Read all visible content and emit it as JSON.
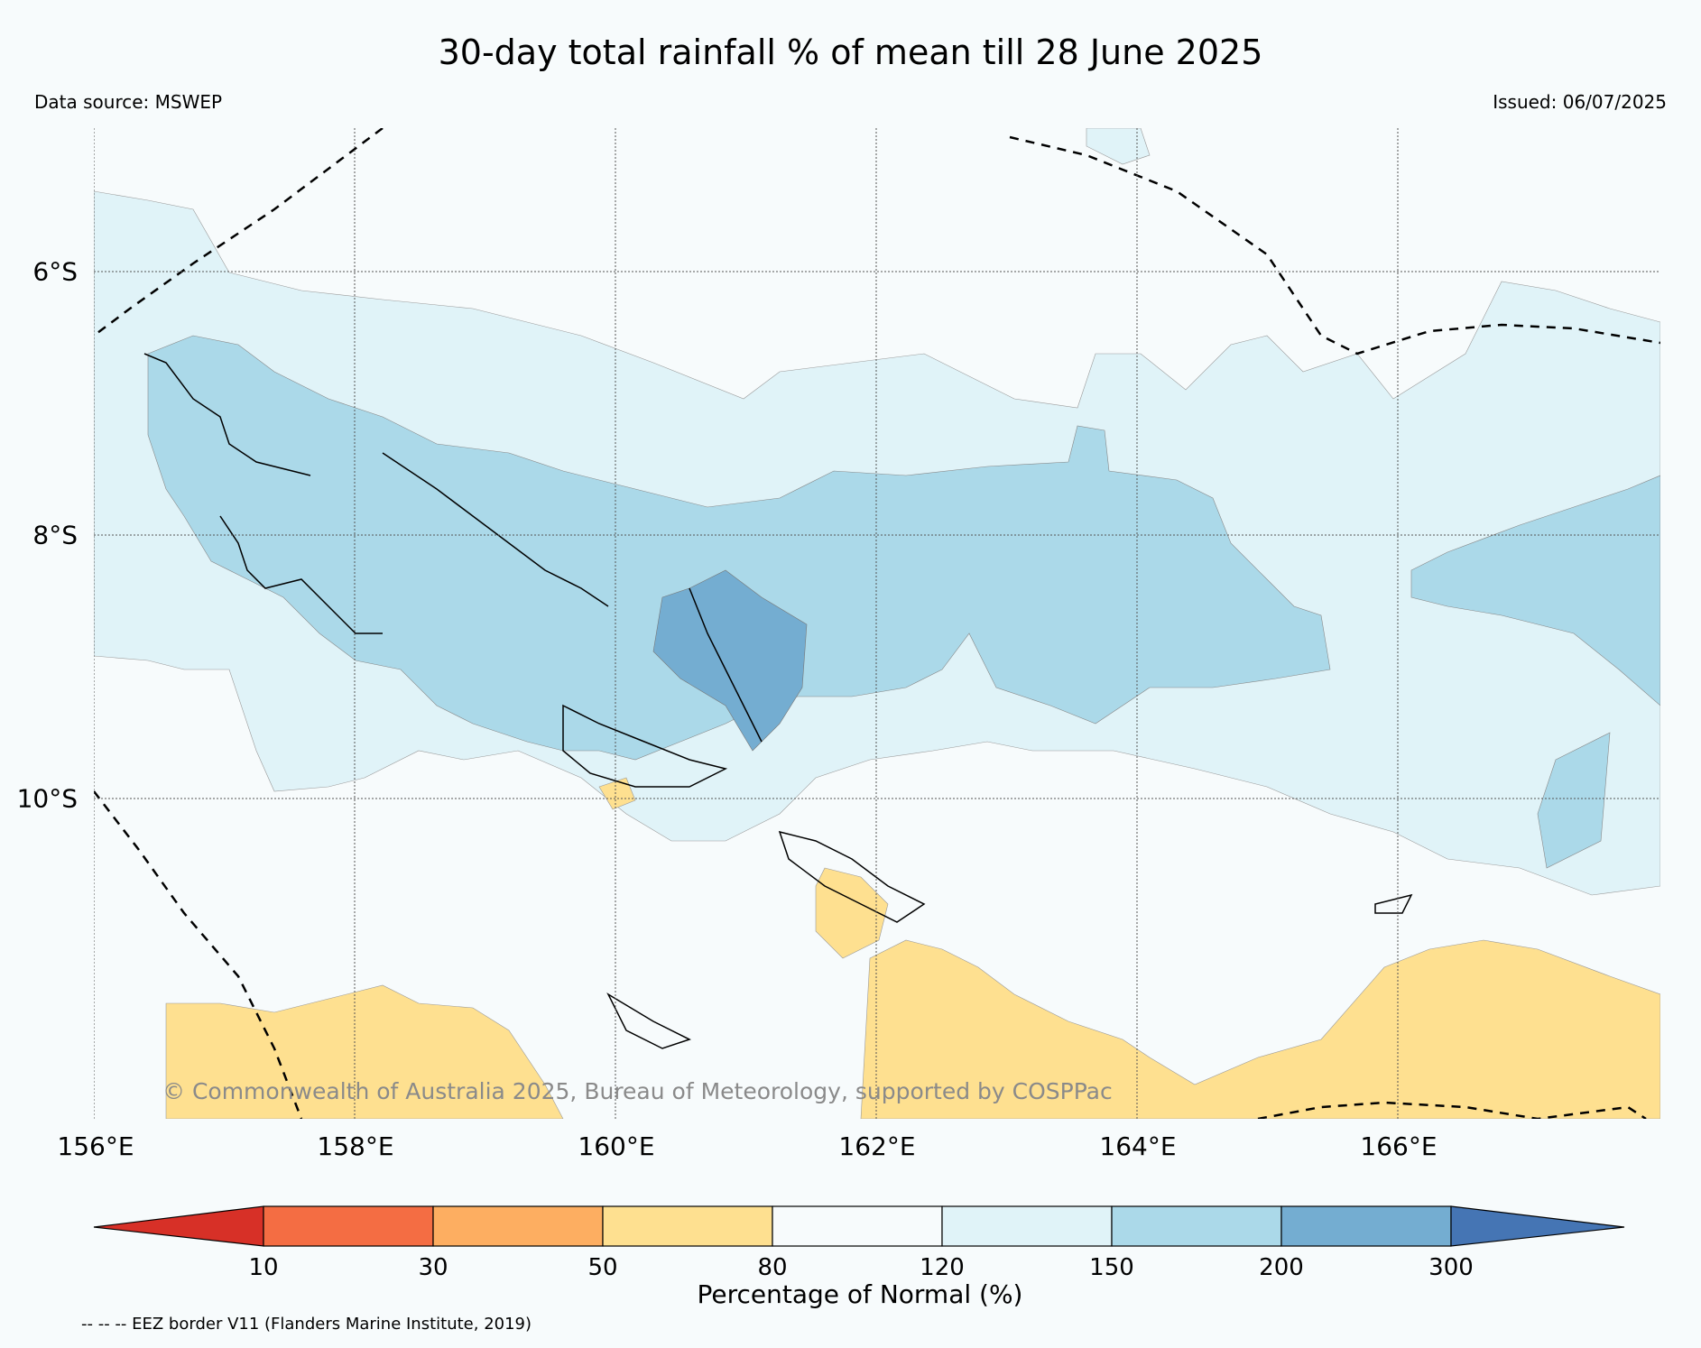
{
  "title": "30-day total rainfall % of mean till 28 June 2025",
  "data_source": "Data source: MSWEP",
  "issued": "Issued: 06/07/2025",
  "copyright": "© Commonwealth of Australia 2025, Bureau of Meteorology, supported by COSPPac",
  "lon_labels": [
    "156°E",
    "158°E",
    "160°E",
    "162°E",
    "164°E",
    "166°E"
  ],
  "lat_labels": [
    "6°S",
    "8°S",
    "10°S"
  ],
  "colorbar": {
    "label": "Percentage of Normal (%)",
    "ticks": [
      "10",
      "30",
      "50",
      "80",
      "120",
      "150",
      "200",
      "300"
    ],
    "colors": [
      "#d73027",
      "#f46d43",
      "#fdae61",
      "#fee090",
      "#f7fbfc",
      "#e0f3f8",
      "#abd9e9",
      "#74add1",
      "#4575b4"
    ]
  },
  "legend": "-- -- -- EEZ border V11 (Flanders Marine Institute, 2019)"
}
